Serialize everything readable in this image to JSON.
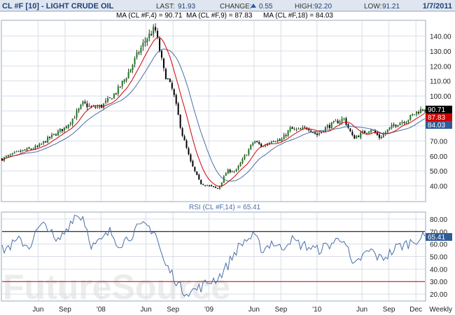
{
  "header": {
    "title": "CL #F [10] - LIGHT CRUDE OIL",
    "last_label": "LAST:",
    "last_value": "91.93",
    "change_label": "CHANGE:",
    "change_value": "0.55",
    "high_label": "HIGH:",
    "high_value": "92.20",
    "low_label": "LOW:",
    "low_value": "91.21",
    "date": "1/7/2011"
  },
  "price_panel": {
    "ma_legend": [
      {
        "text": "MA (CL #F,4) = 90.71",
        "color": "#000000"
      },
      {
        "text": "MA (CL #F,9) = 87.83",
        "color": "#cc0000"
      },
      {
        "text": "MA (CL #F,18) = 84.03",
        "color": "#4a6fa5"
      }
    ],
    "current_labels": [
      {
        "text": "90.71",
        "value": 90.71,
        "bg": "#000000",
        "fg": "#ffffff"
      },
      {
        "text": "87.83",
        "value": 87.83,
        "bg": "#cc0000",
        "fg": "#ffffff"
      },
      {
        "text": "84.03",
        "value": 84.03,
        "bg": "#2e5c9a",
        "fg": "#ffffff"
      }
    ]
  },
  "rsi_panel": {
    "legend": "RSI (CL #F,14) = 65.41",
    "current_label": {
      "text": "65.41",
      "value": 65.41,
      "bg": "#2e5c9a",
      "fg": "#ffffff"
    }
  },
  "watermark": "FutureSource",
  "colors": {
    "candle_up": "#1a7a1a",
    "candle_down": "#000000",
    "ma4": "#000000",
    "ma9": "#cc0000",
    "ma18": "#4a6fa5",
    "rsi_line": "#4a6fa5",
    "rsi_70_line": "#000000",
    "rsi_30_line": "#cc0000",
    "grid": "#d8dde6"
  },
  "chart_data": [
    {
      "type": "line",
      "xlabel": "",
      "ylabel": "",
      "ylim": [
        30,
        150
      ],
      "grid": true,
      "y_ticks": [
        "40.00",
        "50.00",
        "60.00",
        "70.00",
        "80.00",
        "90.00",
        "100.00",
        "110.00",
        "120.00",
        "130.00",
        "140.00"
      ],
      "x_tick_labels": [
        "Jun",
        "Sep",
        "'08",
        "Jun",
        "Sep",
        "'09",
        "Jun",
        "Sep",
        "'10",
        "Jun",
        "Sep",
        "Dec",
        "Weekly"
      ],
      "x_tick_dates": [
        "2007-06",
        "2007-09",
        "2008-01",
        "2008-06",
        "2008-09",
        "2009-01",
        "2009-06",
        "2009-09",
        "2010-01",
        "2010-06",
        "2010-09",
        "2010-12"
      ],
      "x_range": [
        "2007-02",
        "2011-01"
      ],
      "price_anchors": [
        [
          "2007-02",
          58
        ],
        [
          "2007-04",
          63
        ],
        [
          "2007-06",
          66
        ],
        [
          "2007-07",
          71
        ],
        [
          "2007-09",
          79
        ],
        [
          "2007-10",
          86
        ],
        [
          "2007-11",
          95
        ],
        [
          "2007-12",
          92
        ],
        [
          "2008-01",
          93
        ],
        [
          "2008-02",
          98
        ],
        [
          "2008-03",
          105
        ],
        [
          "2008-04",
          115
        ],
        [
          "2008-05",
          127
        ],
        [
          "2008-06",
          138
        ],
        [
          "2008-07",
          145
        ],
        [
          "2008-08",
          116
        ],
        [
          "2008-09",
          103
        ],
        [
          "2008-10",
          75
        ],
        [
          "2008-11",
          55
        ],
        [
          "2008-12",
          42
        ],
        [
          "2009-01",
          40
        ],
        [
          "2009-02",
          38
        ],
        [
          "2009-03",
          50
        ],
        [
          "2009-04",
          50
        ],
        [
          "2009-05",
          60
        ],
        [
          "2009-06",
          70
        ],
        [
          "2009-07",
          66
        ],
        [
          "2009-08",
          71
        ],
        [
          "2009-09",
          70
        ],
        [
          "2009-10",
          78
        ],
        [
          "2009-11",
          77
        ],
        [
          "2009-12",
          79
        ],
        [
          "2010-01",
          74
        ],
        [
          "2010-02",
          79
        ],
        [
          "2010-03",
          82
        ],
        [
          "2010-04",
          85
        ],
        [
          "2010-05",
          72
        ],
        [
          "2010-06",
          75
        ],
        [
          "2010-07",
          78
        ],
        [
          "2010-08",
          72
        ],
        [
          "2010-09",
          78
        ],
        [
          "2010-10",
          82
        ],
        [
          "2010-11",
          84
        ],
        [
          "2010-12",
          89
        ],
        [
          "2011-01",
          91.93
        ]
      ],
      "series": [
        {
          "name": "MA (CL #F,4)",
          "value": 90.71
        },
        {
          "name": "MA (CL #F,9)",
          "value": 87.83
        },
        {
          "name": "MA (CL #F,18)",
          "value": 84.03
        }
      ]
    },
    {
      "type": "line",
      "ylim": [
        15,
        85
      ],
      "y_ticks": [
        "20.00",
        "30.00",
        "40.00",
        "50.00",
        "60.00",
        "70.00",
        "80.00"
      ],
      "reference_lines": [
        70,
        30
      ],
      "rsi_anchors": [
        [
          "2007-02",
          55
        ],
        [
          "2007-04",
          63
        ],
        [
          "2007-05",
          58
        ],
        [
          "2007-06",
          72
        ],
        [
          "2007-07",
          76
        ],
        [
          "2007-08",
          60
        ],
        [
          "2007-09",
          70
        ],
        [
          "2007-10",
          83
        ],
        [
          "2007-11",
          82
        ],
        [
          "2007-12",
          58
        ],
        [
          "2008-01",
          62
        ],
        [
          "2008-02",
          70
        ],
        [
          "2008-03",
          60
        ],
        [
          "2008-04",
          65
        ],
        [
          "2008-05",
          72
        ],
        [
          "2008-06",
          75
        ],
        [
          "2008-07",
          70
        ],
        [
          "2008-08",
          45
        ],
        [
          "2008-09",
          35
        ],
        [
          "2008-10",
          23
        ],
        [
          "2008-11",
          22
        ],
        [
          "2008-12",
          25
        ],
        [
          "2009-01",
          30
        ],
        [
          "2009-02",
          33
        ],
        [
          "2009-03",
          42
        ],
        [
          "2009-04",
          55
        ],
        [
          "2009-05",
          63
        ],
        [
          "2009-06",
          66
        ],
        [
          "2009-07",
          55
        ],
        [
          "2009-08",
          62
        ],
        [
          "2009-09",
          56
        ],
        [
          "2009-10",
          64
        ],
        [
          "2009-11",
          60
        ],
        [
          "2009-12",
          58
        ],
        [
          "2010-01",
          55
        ],
        [
          "2010-02",
          58
        ],
        [
          "2010-03",
          62
        ],
        [
          "2010-04",
          66
        ],
        [
          "2010-05",
          40
        ],
        [
          "2010-06",
          50
        ],
        [
          "2010-07",
          55
        ],
        [
          "2010-08",
          48
        ],
        [
          "2010-09",
          52
        ],
        [
          "2010-10",
          58
        ],
        [
          "2010-11",
          60
        ],
        [
          "2010-12",
          64
        ],
        [
          "2011-01",
          65.41
        ]
      ],
      "series": [
        {
          "name": "RSI (CL #F,14)",
          "value": 65.41
        }
      ]
    }
  ]
}
